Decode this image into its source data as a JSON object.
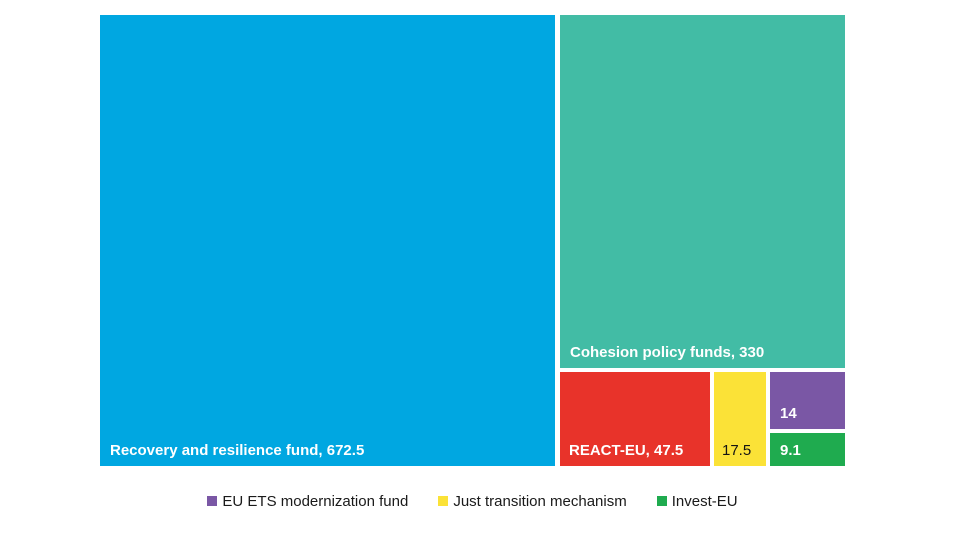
{
  "chart_data": {
    "type": "treemap",
    "title": "",
    "legend_position": "bottom",
    "items": [
      {
        "label": "Recovery and resilience fund",
        "value": 672.5,
        "color": "#00A7E1",
        "text_color": "#FFFFFF"
      },
      {
        "label": "Cohesion policy funds",
        "value": 330,
        "color": "#42BCA5",
        "text_color": "#FFFFFF"
      },
      {
        "label": "REACT-EU",
        "value": 47.5,
        "color": "#E8332A",
        "text_color": "#FFFFFF"
      },
      {
        "label": "Just transition mechanism",
        "value": 17.5,
        "color": "#FBE237",
        "text_color": "#141414"
      },
      {
        "label": "EU ETS modernization fund",
        "value": 14,
        "color": "#7A57A5",
        "text_color": "#FFFFFF"
      },
      {
        "label": "Invest-EU",
        "value": 9.1,
        "color": "#1FAB4F",
        "text_color": "#FFFFFF"
      }
    ]
  },
  "treemap": {
    "tiles": [
      {
        "display": "Recovery and resilience fund, 672.5"
      },
      {
        "display": "Cohesion policy funds, 330"
      },
      {
        "display": "REACT-EU, 47.5"
      },
      {
        "display": "17.5"
      },
      {
        "display": "14"
      },
      {
        "display": "9.1"
      }
    ]
  },
  "legend": {
    "items": [
      {
        "label": "EU ETS modernization fund",
        "color": "#7A57A5"
      },
      {
        "label": "Just transition mechanism",
        "color": "#FBE237"
      },
      {
        "label": "Invest-EU",
        "color": "#1FAB4F"
      }
    ]
  }
}
